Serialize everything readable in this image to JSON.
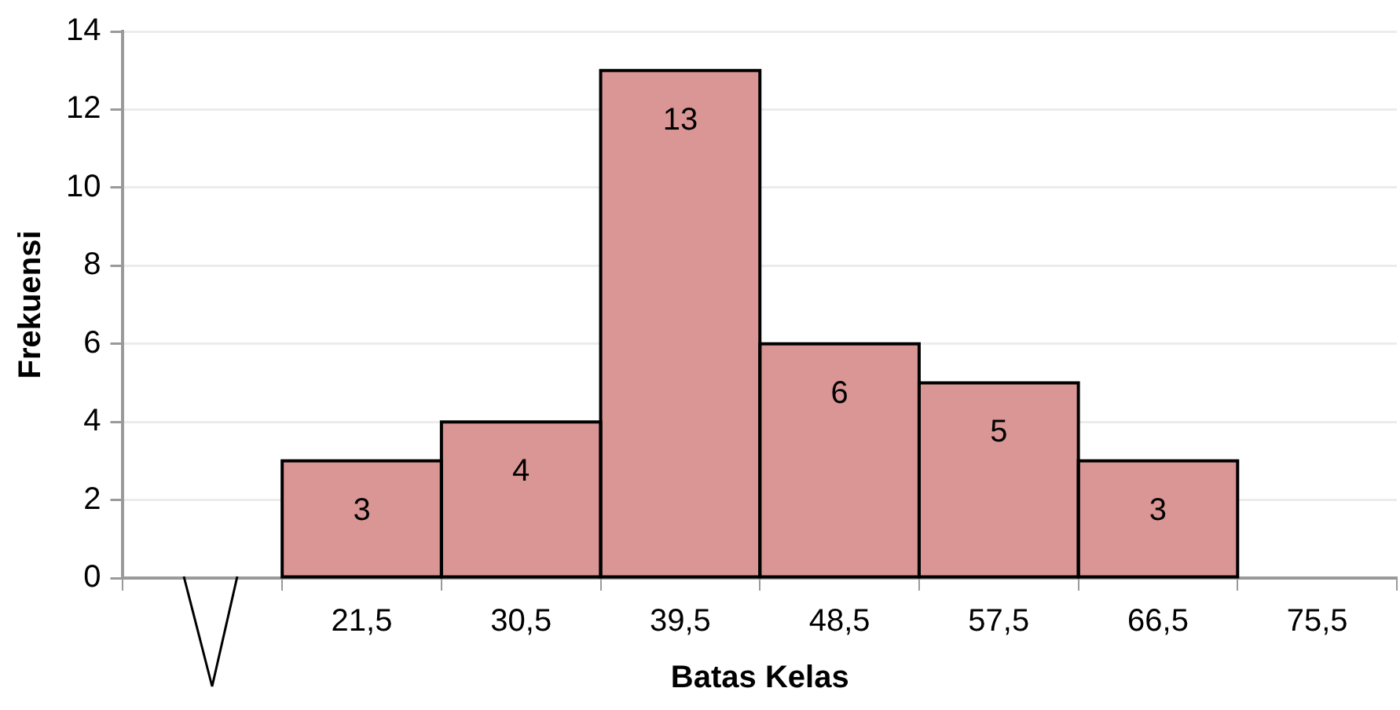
{
  "chart_data": {
    "type": "bar",
    "xlabel": "Batas Kelas",
    "ylabel": "Frekuensi",
    "categories": [
      null,
      "21,5",
      "30,5",
      "39,5",
      "48,5",
      "57,5",
      "66,5",
      "75,5"
    ],
    "values": [
      null,
      3,
      4,
      13,
      6,
      5,
      3,
      null
    ],
    "color": "#d99694",
    "ylim": [
      0,
      14
    ],
    "yticks": [
      0,
      2,
      4,
      6,
      8,
      10,
      12,
      14
    ],
    "grid": "y",
    "legend": false,
    "data_labels": true
  }
}
